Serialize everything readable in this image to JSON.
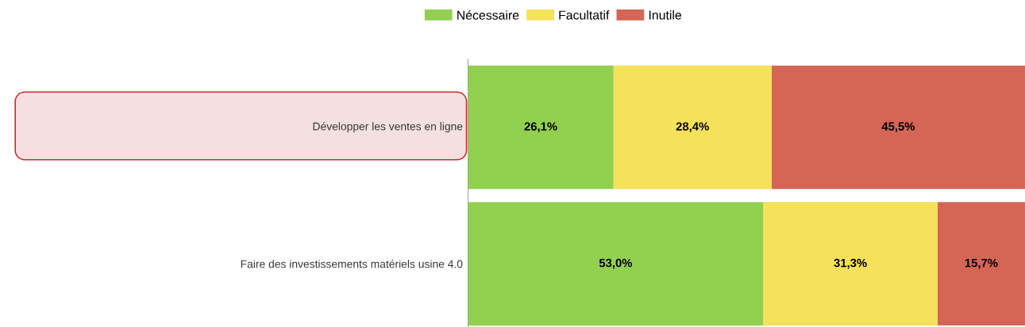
{
  "chart_data": {
    "type": "bar",
    "orientation": "horizontal",
    "stacked": true,
    "legend": "top",
    "categories": [
      "Développer les ventes en ligne",
      "Faire des investissements matériels usine 4.0"
    ],
    "xlim": [
      0,
      100
    ],
    "series": [
      {
        "name": "Nécessaire",
        "color": "#92d050",
        "values": [
          26.1,
          53.0
        ],
        "value_labels": [
          "26,1%",
          "53,0%"
        ]
      },
      {
        "name": "Facultatif",
        "color": "#f5e15a",
        "values": [
          28.4,
          31.3
        ],
        "value_labels": [
          "28,4%",
          "31,3%"
        ]
      },
      {
        "name": "Inutile",
        "color": "#d56555",
        "values": [
          45.5,
          15.7
        ],
        "value_labels": [
          "45,5%",
          "15,7%"
        ]
      }
    ]
  }
}
